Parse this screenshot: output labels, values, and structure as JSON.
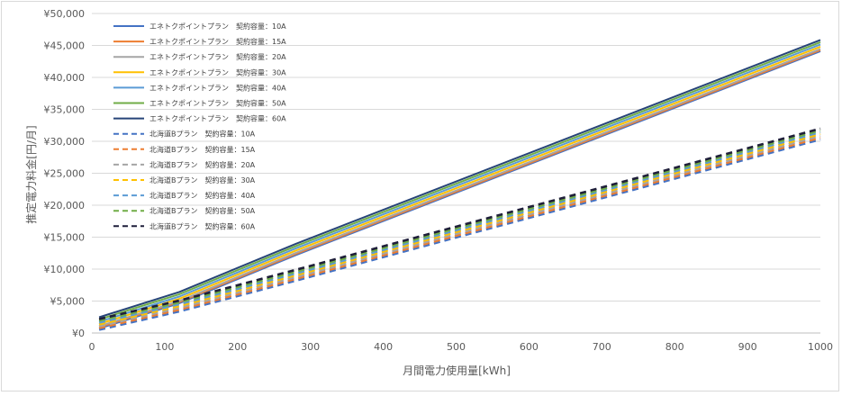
{
  "chart_data": {
    "type": "line",
    "title": "",
    "xlabel": "月間電力使用量[kWh]",
    "ylabel": "推定電力料金[円/月]",
    "xlim": [
      0,
      1000
    ],
    "ylim": [
      0,
      50000
    ],
    "x_ticks": [
      "0",
      "100",
      "200",
      "300",
      "400",
      "500",
      "600",
      "700",
      "800",
      "900",
      "1000"
    ],
    "y_ticks": [
      "¥0",
      "¥5,000",
      "¥10,000",
      "¥15,000",
      "¥20,000",
      "¥25,000",
      "¥30,000",
      "¥35,000",
      "¥40,000",
      "¥45,000",
      "¥50,000"
    ],
    "grid": "horizontal",
    "legend_position": "top-left",
    "x": [
      10,
      120,
      280,
      1000
    ],
    "series": [
      {
        "name": "エネトクポイントプラン　契約容量：10A",
        "color": "#4472c4",
        "dash": "solid",
        "values": [
          710,
          4660,
          12200,
          44100
        ]
      },
      {
        "name": "エネトクポイントプラン　契約容量：15A",
        "color": "#ed7d31",
        "dash": "solid",
        "values": [
          880,
          4830,
          12370,
          44270
        ]
      },
      {
        "name": "エネトクポイントプラン　契約容量：20A",
        "color": "#a5a5a5",
        "dash": "solid",
        "values": [
          1060,
          5010,
          12550,
          44450
        ]
      },
      {
        "name": "エネトクポイントプラン　契約容量：30A",
        "color": "#ffc000",
        "dash": "solid",
        "values": [
          1410,
          5360,
          12900,
          44800
        ]
      },
      {
        "name": "エネトクポイントプラン　契約容量：40A",
        "color": "#5b9bd5",
        "dash": "solid",
        "values": [
          1760,
          5710,
          13250,
          45150
        ]
      },
      {
        "name": "エネトクポイントプラン　契約容量：50A",
        "color": "#70ad47",
        "dash": "solid",
        "values": [
          2120,
          6070,
          13610,
          45510
        ]
      },
      {
        "name": "エネトクポイントプラン　契約容量：60A",
        "color": "#264478",
        "dash": "solid",
        "values": [
          2470,
          6420,
          13960,
          45860
        ]
      },
      {
        "name": "北海道Bプラン　契約容量：10A",
        "color": "#4472c4",
        "dash": "dashed",
        "values": [
          500,
          3380,
          8200,
          30300
        ]
      },
      {
        "name": "北海道Bプラン　契約容量：15A",
        "color": "#ed7d31",
        "dash": "dashed",
        "values": [
          780,
          3660,
          8480,
          30580
        ]
      },
      {
        "name": "北海道Bプラン　契約容量：20A",
        "color": "#a5a5a5",
        "dash": "dashed",
        "values": [
          1060,
          3940,
          8760,
          30860
        ]
      },
      {
        "name": "北海道Bプラン　契約容量：30A",
        "color": "#ffc000",
        "dash": "dashed",
        "values": [
          1350,
          4230,
          9050,
          31150
        ]
      },
      {
        "name": "北海道Bプラン　契約容量：40A",
        "color": "#5b9bd5",
        "dash": "dashed",
        "values": [
          1630,
          4510,
          9330,
          31430
        ]
      },
      {
        "name": "北海道Bプラン　契約容量：50A",
        "color": "#70ad47",
        "dash": "dashed",
        "values": [
          1910,
          4790,
          9610,
          31710
        ]
      },
      {
        "name": "北海道Bプラン　契約容量：60A",
        "color": "#1f1f3a",
        "dash": "dashed",
        "values": [
          2190,
          5070,
          9890,
          31990
        ]
      }
    ]
  }
}
